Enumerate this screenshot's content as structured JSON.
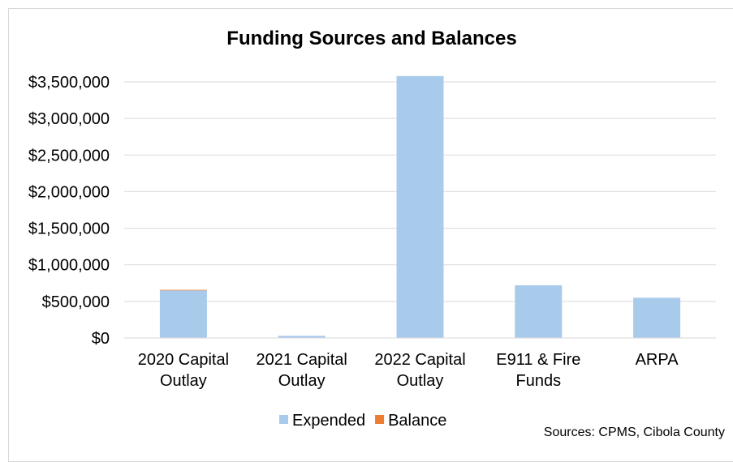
{
  "chart_data": {
    "type": "bar",
    "stacked": true,
    "title": "Funding Sources and Balances",
    "categories": [
      [
        "2020 Capital",
        "Outlay"
      ],
      [
        "2021 Capital",
        "Outlay"
      ],
      [
        "2022 Capital",
        "Outlay"
      ],
      [
        "E911 & Fire",
        "Funds"
      ],
      [
        "ARPA"
      ]
    ],
    "series": [
      {
        "name": "Expended",
        "color": "#a9cbeb",
        "values": [
          650000,
          30000,
          3580000,
          720000,
          550000
        ]
      },
      {
        "name": "Balance",
        "color": "#ed7d31",
        "values": [
          8000,
          0,
          0,
          0,
          0
        ]
      }
    ],
    "ylim": [
      0,
      3500000
    ],
    "yticks": [
      "$0",
      "$500,000",
      "$1,000,000",
      "$1,500,000",
      "$2,000,000",
      "$2,500,000",
      "$3,000,000",
      "$3,500,000"
    ],
    "grid": true,
    "legend_position": "bottom",
    "source": "Sources: CPMS, Cibola County"
  }
}
